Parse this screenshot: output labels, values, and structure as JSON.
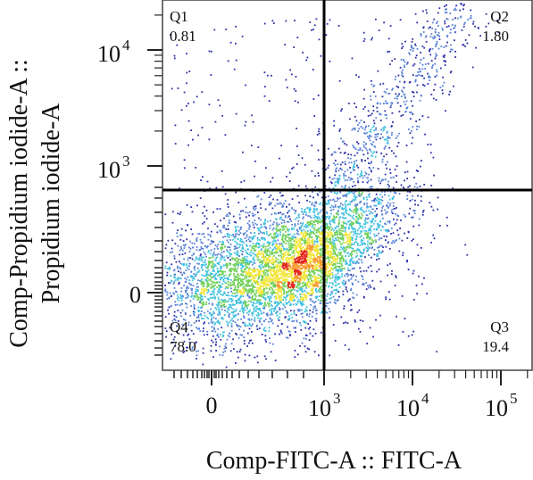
{
  "chart_data": {
    "type": "scatter",
    "subtype": "flow-cytometry density dot plot with quadrant gates",
    "xlabel": "Comp-FITC-A :: FITC-A",
    "ylabel_lines": [
      "Comp-Propidium iodide-A ::",
      "Propidium iodide-A"
    ],
    "x_scale": "biexponential",
    "y_scale": "biexponential",
    "x_ticks": [
      {
        "base": "0",
        "exp": ""
      },
      {
        "base": "10",
        "exp": "3"
      },
      {
        "base": "10",
        "exp": "4"
      },
      {
        "base": "10",
        "exp": "5"
      }
    ],
    "y_ticks": [
      {
        "base": "0",
        "exp": ""
      },
      {
        "base": "10",
        "exp": "3"
      },
      {
        "base": "10",
        "exp": "4"
      }
    ],
    "gate_x": 1000,
    "gate_y": 600,
    "quadrants": [
      {
        "name": "Q1",
        "value": "0.81"
      },
      {
        "name": "Q2",
        "value": "1.80"
      },
      {
        "name": "Q3",
        "value": "19.4"
      },
      {
        "name": "Q4",
        "value": "78.0"
      }
    ],
    "density_colors": [
      "#2b2fa8",
      "#5a83d6",
      "#3fc1e0",
      "#6fcf57",
      "#f2e53b",
      "#f79a2e",
      "#e3271c"
    ],
    "grid": false,
    "legend": "none"
  }
}
